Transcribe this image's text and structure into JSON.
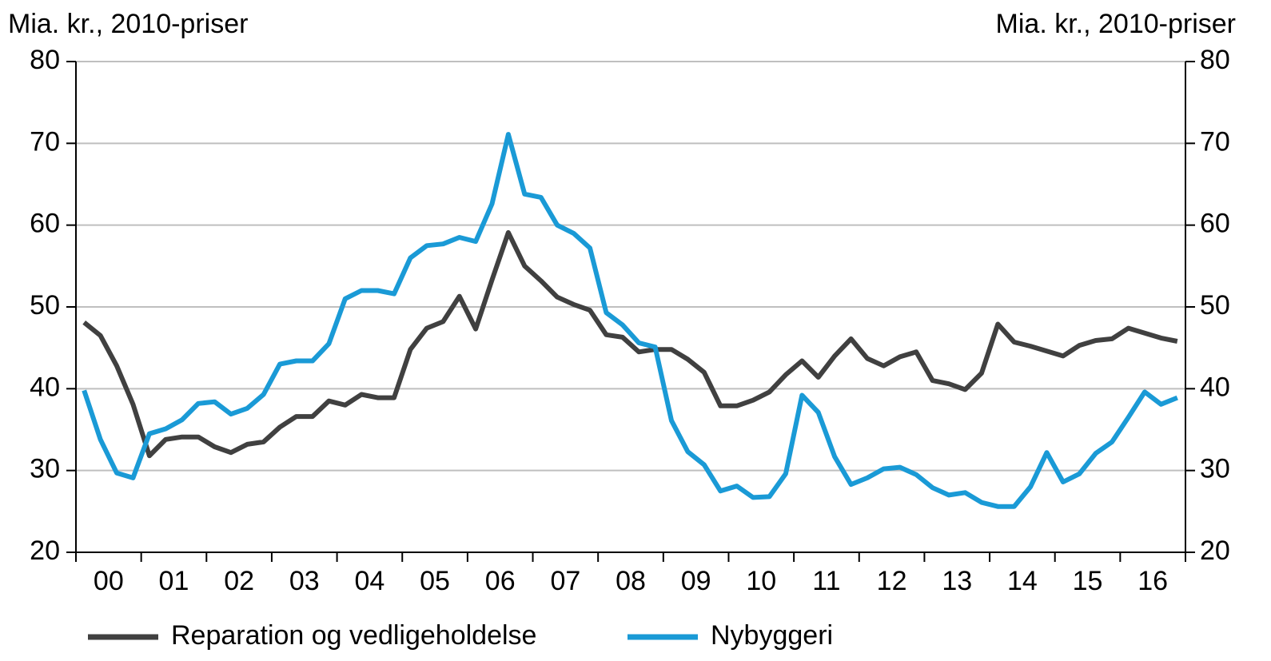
{
  "chart_data": {
    "type": "line",
    "y_label": "Mia. kr., 2010-priser",
    "y2_label": "Mia. kr., 2010-priser",
    "categories": [
      null,
      "00",
      null,
      null,
      null,
      "01",
      null,
      null,
      null,
      "02",
      null,
      null,
      null,
      "03",
      null,
      null,
      null,
      "04",
      null,
      null,
      null,
      "05",
      null,
      null,
      null,
      "06",
      null,
      null,
      null,
      "07",
      null,
      null,
      null,
      "08",
      null,
      null,
      null,
      "09",
      null,
      null,
      null,
      "10",
      null,
      null,
      null,
      "11",
      null,
      null,
      null,
      "12",
      null,
      null,
      null,
      "13",
      null,
      null,
      null,
      "14",
      null,
      null,
      null,
      "15",
      null,
      null,
      null,
      "16",
      null,
      null
    ],
    "series": [
      {
        "name": "Reparation og vedligeholdelse",
        "color": "#404040",
        "values": [
          48.1,
          46.5,
          42.8,
          38.1,
          31.8,
          33.8,
          34.1,
          34.1,
          32.9,
          32.2,
          33.2,
          33.5,
          35.3,
          36.6,
          36.6,
          38.5,
          38.0,
          39.3,
          38.9,
          38.9,
          44.8,
          47.4,
          48.2,
          51.3,
          47.3,
          53.3,
          59.1,
          55.0,
          53.2,
          51.2,
          50.3,
          49.6,
          46.6,
          46.3,
          44.5,
          44.8,
          44.8,
          43.6,
          42.0,
          37.9,
          37.9,
          38.6,
          39.6,
          41.7,
          43.4,
          41.4,
          44.0,
          46.1,
          43.7,
          42.8,
          43.9,
          44.5,
          41.0,
          40.6,
          39.9,
          41.9,
          47.9,
          45.7,
          45.2,
          44.6,
          44.0,
          45.3,
          45.9,
          46.1,
          47.4,
          46.8,
          46.2,
          45.8
        ]
      },
      {
        "name": "Nybyggeri",
        "color": "#1a9ad6",
        "values": [
          39.8,
          33.8,
          29.7,
          29.1,
          34.5,
          35.1,
          36.2,
          38.2,
          38.4,
          36.9,
          37.6,
          39.3,
          43.0,
          43.4,
          43.4,
          45.5,
          51.0,
          52.0,
          52.0,
          51.6,
          56.0,
          57.5,
          57.7,
          58.5,
          58.0,
          62.6,
          71.1,
          63.8,
          63.4,
          60.0,
          59.0,
          57.2,
          49.3,
          47.8,
          45.6,
          45.1,
          36.1,
          32.3,
          30.7,
          27.5,
          28.1,
          26.7,
          26.8,
          29.6,
          39.2,
          37.1,
          31.7,
          28.3,
          29.1,
          30.2,
          30.4,
          29.5,
          27.9,
          27.0,
          27.3,
          26.1,
          25.6,
          25.6,
          28.0,
          32.2,
          28.6,
          29.6,
          32.1,
          33.5,
          36.5,
          39.6,
          38.1,
          38.9
        ]
      }
    ],
    "ylim": [
      20,
      80
    ],
    "yticks": [
      20,
      30,
      40,
      50,
      60,
      70,
      80
    ],
    "y2lim": [
      20,
      80
    ],
    "y2ticks": [
      20,
      30,
      40,
      50,
      60,
      70,
      80
    ],
    "grid": true
  }
}
